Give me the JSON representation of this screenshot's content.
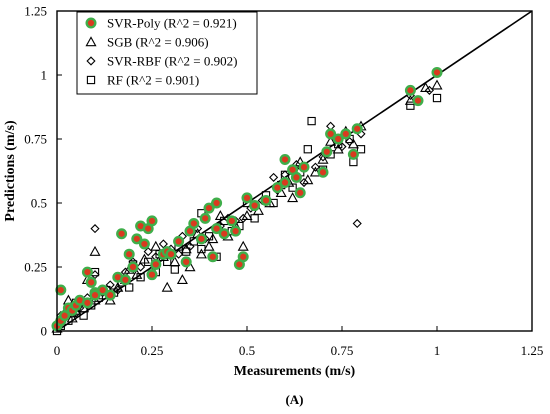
{
  "chart_data": {
    "type": "scatter",
    "xlabel": "Measurements (m/s)",
    "ylabel": "Predictions (m/s)",
    "panel_label": "(A)",
    "xlim": [
      0,
      1.25
    ],
    "ylim": [
      0,
      1.25
    ],
    "x_ticks": [
      "0",
      "0.25",
      "0.5",
      "0.75",
      "1",
      "1.25"
    ],
    "y_ticks": [
      "0",
      "0.25",
      "0.5",
      "0.75",
      "1",
      "1.25"
    ],
    "grid": false,
    "legend_position": "top-left",
    "reference_line": {
      "x": [
        0,
        1.25
      ],
      "y": [
        0,
        1.25
      ]
    },
    "colors": {
      "poly_fill": "#d93a1f",
      "poly_edge": "#3fae4a",
      "marker": "#000000"
    },
    "series": [
      {
        "name": "SVR-Poly (R^2 = 0.921)",
        "marker": "circle",
        "points": [
          [
            0.0,
            0.02
          ],
          [
            0.01,
            0.04
          ],
          [
            0.01,
            0.16
          ],
          [
            0.02,
            0.06
          ],
          [
            0.03,
            0.09
          ],
          [
            0.04,
            0.08
          ],
          [
            0.05,
            0.1
          ],
          [
            0.06,
            0.12
          ],
          [
            0.08,
            0.11
          ],
          [
            0.08,
            0.23
          ],
          [
            0.09,
            0.19
          ],
          [
            0.1,
            0.15
          ],
          [
            0.1,
            0.14
          ],
          [
            0.12,
            0.16
          ],
          [
            0.14,
            0.14
          ],
          [
            0.16,
            0.21
          ],
          [
            0.17,
            0.38
          ],
          [
            0.18,
            0.2
          ],
          [
            0.19,
            0.3
          ],
          [
            0.2,
            0.25
          ],
          [
            0.21,
            0.36
          ],
          [
            0.22,
            0.41
          ],
          [
            0.23,
            0.34
          ],
          [
            0.24,
            0.4
          ],
          [
            0.25,
            0.43
          ],
          [
            0.25,
            0.22
          ],
          [
            0.26,
            0.26
          ],
          [
            0.28,
            0.3
          ],
          [
            0.29,
            0.31
          ],
          [
            0.3,
            0.3
          ],
          [
            0.32,
            0.35
          ],
          [
            0.34,
            0.27
          ],
          [
            0.35,
            0.39
          ],
          [
            0.36,
            0.42
          ],
          [
            0.38,
            0.36
          ],
          [
            0.39,
            0.44
          ],
          [
            0.4,
            0.48
          ],
          [
            0.41,
            0.29
          ],
          [
            0.42,
            0.5
          ],
          [
            0.42,
            0.4
          ],
          [
            0.44,
            0.38
          ],
          [
            0.46,
            0.43
          ],
          [
            0.47,
            0.39
          ],
          [
            0.48,
            0.26
          ],
          [
            0.49,
            0.29
          ],
          [
            0.5,
            0.52
          ],
          [
            0.52,
            0.49
          ],
          [
            0.55,
            0.51
          ],
          [
            0.58,
            0.56
          ],
          [
            0.6,
            0.67
          ],
          [
            0.6,
            0.58
          ],
          [
            0.62,
            0.63
          ],
          [
            0.63,
            0.6
          ],
          [
            0.64,
            0.54
          ],
          [
            0.65,
            0.64
          ],
          [
            0.7,
            0.62
          ],
          [
            0.71,
            0.7
          ],
          [
            0.72,
            0.77
          ],
          [
            0.74,
            0.75
          ],
          [
            0.76,
            0.77
          ],
          [
            0.78,
            0.69
          ],
          [
            0.79,
            0.79
          ],
          [
            0.93,
            0.94
          ],
          [
            0.95,
            0.9
          ],
          [
            1.0,
            1.01
          ]
        ]
      },
      {
        "name": "SGB (R^2 = 0.906)",
        "marker": "triangle",
        "points": [
          [
            0.0,
            0.01
          ],
          [
            0.01,
            0.05
          ],
          [
            0.02,
            0.07
          ],
          [
            0.03,
            0.12
          ],
          [
            0.04,
            0.05
          ],
          [
            0.05,
            0.08
          ],
          [
            0.07,
            0.09
          ],
          [
            0.08,
            0.2
          ],
          [
            0.1,
            0.12
          ],
          [
            0.1,
            0.31
          ],
          [
            0.12,
            0.14
          ],
          [
            0.14,
            0.12
          ],
          [
            0.16,
            0.17
          ],
          [
            0.18,
            0.2
          ],
          [
            0.19,
            0.24
          ],
          [
            0.21,
            0.22
          ],
          [
            0.23,
            0.28
          ],
          [
            0.25,
            0.24
          ],
          [
            0.26,
            0.33
          ],
          [
            0.28,
            0.29
          ],
          [
            0.29,
            0.17
          ],
          [
            0.31,
            0.27
          ],
          [
            0.33,
            0.2
          ],
          [
            0.34,
            0.32
          ],
          [
            0.35,
            0.25
          ],
          [
            0.37,
            0.38
          ],
          [
            0.38,
            0.3
          ],
          [
            0.4,
            0.33
          ],
          [
            0.41,
            0.36
          ],
          [
            0.43,
            0.45
          ],
          [
            0.45,
            0.37
          ],
          [
            0.47,
            0.41
          ],
          [
            0.49,
            0.33
          ],
          [
            0.5,
            0.45
          ],
          [
            0.53,
            0.47
          ],
          [
            0.56,
            0.5
          ],
          [
            0.59,
            0.54
          ],
          [
            0.61,
            0.58
          ],
          [
            0.62,
            0.52
          ],
          [
            0.64,
            0.66
          ],
          [
            0.66,
            0.59
          ],
          [
            0.68,
            0.62
          ],
          [
            0.7,
            0.67
          ],
          [
            0.72,
            0.74
          ],
          [
            0.74,
            0.71
          ],
          [
            0.76,
            0.78
          ],
          [
            0.78,
            0.73
          ],
          [
            0.8,
            0.8
          ],
          [
            0.93,
            0.9
          ],
          [
            0.97,
            0.95
          ],
          [
            1.0,
            0.96
          ]
        ]
      },
      {
        "name": "SVR-RBF (R^2 = 0.902)",
        "marker": "diamond",
        "points": [
          [
            0.0,
            0.03
          ],
          [
            0.01,
            0.06
          ],
          [
            0.02,
            0.05
          ],
          [
            0.04,
            0.1
          ],
          [
            0.05,
            0.07
          ],
          [
            0.06,
            0.09
          ],
          [
            0.08,
            0.13
          ],
          [
            0.1,
            0.4
          ],
          [
            0.1,
            0.22
          ],
          [
            0.12,
            0.15
          ],
          [
            0.14,
            0.18
          ],
          [
            0.16,
            0.16
          ],
          [
            0.18,
            0.23
          ],
          [
            0.2,
            0.27
          ],
          [
            0.22,
            0.25
          ],
          [
            0.24,
            0.31
          ],
          [
            0.26,
            0.29
          ],
          [
            0.28,
            0.34
          ],
          [
            0.3,
            0.32
          ],
          [
            0.32,
            0.3
          ],
          [
            0.33,
            0.37
          ],
          [
            0.35,
            0.33
          ],
          [
            0.37,
            0.4
          ],
          [
            0.39,
            0.36
          ],
          [
            0.41,
            0.49
          ],
          [
            0.43,
            0.41
          ],
          [
            0.45,
            0.44
          ],
          [
            0.47,
            0.43
          ],
          [
            0.49,
            0.44
          ],
          [
            0.51,
            0.48
          ],
          [
            0.54,
            0.51
          ],
          [
            0.57,
            0.6
          ],
          [
            0.58,
            0.55
          ],
          [
            0.6,
            0.61
          ],
          [
            0.63,
            0.65
          ],
          [
            0.65,
            0.58
          ],
          [
            0.68,
            0.64
          ],
          [
            0.7,
            0.68
          ],
          [
            0.72,
            0.8
          ],
          [
            0.75,
            0.72
          ],
          [
            0.77,
            0.74
          ],
          [
            0.79,
            0.42
          ],
          [
            0.8,
            0.77
          ],
          [
            0.93,
            0.92
          ],
          [
            0.98,
            0.94
          ]
        ]
      },
      {
        "name": "RF (R^2 = 0.901)",
        "marker": "square",
        "points": [
          [
            0.0,
            0.0
          ],
          [
            0.01,
            0.02
          ],
          [
            0.03,
            0.04
          ],
          [
            0.04,
            0.07
          ],
          [
            0.05,
            0.11
          ],
          [
            0.07,
            0.06
          ],
          [
            0.09,
            0.1
          ],
          [
            0.1,
            0.23
          ],
          [
            0.11,
            0.13
          ],
          [
            0.13,
            0.16
          ],
          [
            0.15,
            0.15
          ],
          [
            0.17,
            0.19
          ],
          [
            0.19,
            0.17
          ],
          [
            0.2,
            0.26
          ],
          [
            0.22,
            0.21
          ],
          [
            0.24,
            0.27
          ],
          [
            0.26,
            0.23
          ],
          [
            0.27,
            0.3
          ],
          [
            0.29,
            0.27
          ],
          [
            0.31,
            0.24
          ],
          [
            0.32,
            0.33
          ],
          [
            0.34,
            0.31
          ],
          [
            0.36,
            0.35
          ],
          [
            0.38,
            0.46
          ],
          [
            0.38,
            0.32
          ],
          [
            0.4,
            0.37
          ],
          [
            0.42,
            0.29
          ],
          [
            0.44,
            0.43
          ],
          [
            0.46,
            0.39
          ],
          [
            0.48,
            0.41
          ],
          [
            0.5,
            0.5
          ],
          [
            0.52,
            0.44
          ],
          [
            0.55,
            0.53
          ],
          [
            0.57,
            0.5
          ],
          [
            0.59,
            0.57
          ],
          [
            0.6,
            0.61
          ],
          [
            0.62,
            0.56
          ],
          [
            0.64,
            0.62
          ],
          [
            0.66,
            0.71
          ],
          [
            0.67,
            0.82
          ],
          [
            0.7,
            0.63
          ],
          [
            0.72,
            0.69
          ],
          [
            0.74,
            0.73
          ],
          [
            0.77,
            0.75
          ],
          [
            0.78,
            0.66
          ],
          [
            0.8,
            0.71
          ],
          [
            0.93,
            0.88
          ],
          [
            1.0,
            0.91
          ]
        ]
      }
    ]
  }
}
